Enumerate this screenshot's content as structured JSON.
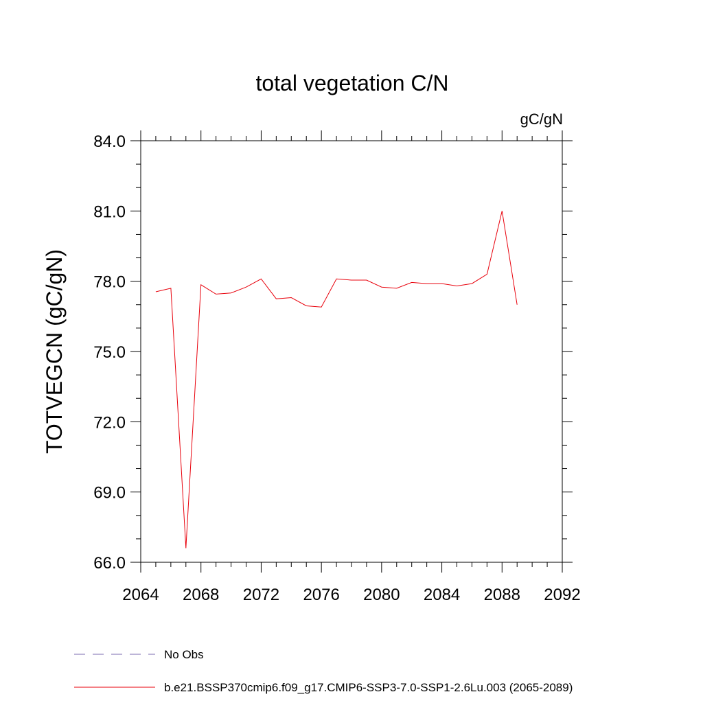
{
  "chart_data": {
    "type": "line",
    "title": "total vegetation C/N",
    "units_label": "gC/gN",
    "ylabel": "TOTVEGCN  (gC/gN)",
    "xlabel": "",
    "xlim": [
      2064,
      2092
    ],
    "ylim": [
      66.0,
      84.0
    ],
    "x_major_ticks": [
      2064,
      2068,
      2072,
      2076,
      2080,
      2084,
      2088,
      2092
    ],
    "y_major_ticks": [
      "66.0",
      "69.0",
      "72.0",
      "75.0",
      "78.0",
      "81.0",
      "84.0"
    ],
    "grid": false,
    "series": [
      {
        "name": "b.e21.BSSP370cmip6.f09_g17.CMIP6-SSP3-7.0-SSP1-2.6Lu.003 (2065-2089)",
        "color": "#e8000b",
        "style": "solid",
        "x": [
          2065,
          2066,
          2067,
          2068,
          2069,
          2070,
          2071,
          2072,
          2073,
          2074,
          2075,
          2076,
          2077,
          2078,
          2079,
          2080,
          2081,
          2082,
          2083,
          2084,
          2085,
          2086,
          2087,
          2088,
          2089
        ],
        "y": [
          77.55,
          77.7,
          66.6,
          77.85,
          77.45,
          77.5,
          77.75,
          78.1,
          77.25,
          77.3,
          76.95,
          76.9,
          78.1,
          78.05,
          78.05,
          77.75,
          77.7,
          77.95,
          77.9,
          77.9,
          77.8,
          77.9,
          78.3,
          81.0,
          77.0
        ]
      }
    ],
    "legend": {
      "placement": "bottom",
      "entries": [
        {
          "label": "No Obs",
          "color": "#7b6bb0",
          "style": "dashed"
        },
        {
          "label": "b.e21.BSSP370cmip6.f09_g17.CMIP6-SSP3-7.0-SSP1-2.6Lu.003 (2065-2089)",
          "color": "#e8000b",
          "style": "solid"
        }
      ]
    }
  }
}
